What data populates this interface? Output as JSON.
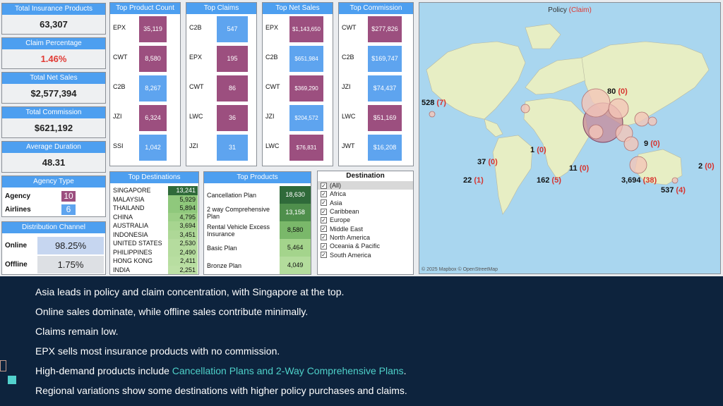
{
  "kpis": [
    {
      "title": "Total Insurance Products",
      "value": "63,307"
    },
    {
      "title": "Claim Percentage",
      "value": "1.46%"
    },
    {
      "title": "Total Net Sales",
      "value": "$2,577,394"
    },
    {
      "title": "Total Commission",
      "value": "$621,192"
    },
    {
      "title": "Average Duration",
      "value": "48.31"
    }
  ],
  "agency_type": {
    "title": "Agency Type",
    "rows": [
      {
        "label": "Agency",
        "value": "10",
        "color": "#9c4f7f"
      },
      {
        "label": "Airlines",
        "value": "6",
        "color": "#5ea4ef"
      }
    ]
  },
  "distribution": {
    "title": "Distribution Channel",
    "rows": [
      {
        "label": "Online",
        "value": "98.25%",
        "color": "#c6d6f0"
      },
      {
        "label": "Offline",
        "value": "1.75%",
        "color": "#dde0e4"
      }
    ]
  },
  "top_product_count": {
    "title": "Top Product Count",
    "rows": [
      {
        "label": "EPX",
        "value": "35,119",
        "color": "#9c4f7f"
      },
      {
        "label": "CWT",
        "value": "8,580",
        "color": "#9c4f7f"
      },
      {
        "label": "C2B",
        "value": "8,267",
        "color": "#5ea4ef"
      },
      {
        "label": "JZI",
        "value": "6,324",
        "color": "#9c4f7f"
      },
      {
        "label": "SSI",
        "value": "1,042",
        "color": "#5ea4ef"
      }
    ]
  },
  "top_claims": {
    "title": "Top Claims",
    "rows": [
      {
        "label": "C2B",
        "value": "547",
        "color": "#5ea4ef"
      },
      {
        "label": "EPX",
        "value": "195",
        "color": "#9c4f7f"
      },
      {
        "label": "CWT",
        "value": "86",
        "color": "#9c4f7f"
      },
      {
        "label": "LWC",
        "value": "36",
        "color": "#9c4f7f"
      },
      {
        "label": "JZI",
        "value": "31",
        "color": "#5ea4ef"
      }
    ]
  },
  "top_net_sales": {
    "title": "Top Net Sales",
    "rows": [
      {
        "label": "EPX",
        "value": "$1,143,650",
        "color": "#9c4f7f"
      },
      {
        "label": "C2B",
        "value": "$651,984",
        "color": "#5ea4ef"
      },
      {
        "label": "CWT",
        "value": "$369,290",
        "color": "#9c4f7f"
      },
      {
        "label": "JZI",
        "value": "$204,572",
        "color": "#5ea4ef"
      },
      {
        "label": "LWC",
        "value": "$76,831",
        "color": "#9c4f7f"
      }
    ]
  },
  "top_commission": {
    "title": "Top Commission",
    "rows": [
      {
        "label": "CWT",
        "value": "$277,826",
        "color": "#9c4f7f"
      },
      {
        "label": "C2B",
        "value": "$169,747",
        "color": "#5ea4ef"
      },
      {
        "label": "JZI",
        "value": "$74,437",
        "color": "#5ea4ef"
      },
      {
        "label": "LWC",
        "value": "$51,169",
        "color": "#9c4f7f"
      },
      {
        "label": "JWT",
        "value": "$16,208",
        "color": "#5ea4ef"
      }
    ]
  },
  "top_destinations": {
    "title": "Top Destinations",
    "rows": [
      {
        "label": "SINGAPORE",
        "value": "13,241",
        "color": "#2f6a3a"
      },
      {
        "label": "MALAYSIA",
        "value": "5,929",
        "color": "#8fc87c"
      },
      {
        "label": "THAILAND",
        "value": "5,894",
        "color": "#8fc87c"
      },
      {
        "label": "CHINA",
        "value": "4,795",
        "color": "#9ccf86"
      },
      {
        "label": "AUSTRALIA",
        "value": "3,694",
        "color": "#a7d590"
      },
      {
        "label": "INDONESIA",
        "value": "3,451",
        "color": "#aed897"
      },
      {
        "label": "UNITED STATES",
        "value": "2,530",
        "color": "#b5dc9e"
      },
      {
        "label": "PHILIPPINES",
        "value": "2,490",
        "color": "#b5dc9e"
      },
      {
        "label": "HONG KONG",
        "value": "2,411",
        "color": "#b8dea1"
      },
      {
        "label": "INDIA",
        "value": "2,251",
        "color": "#bce0a5"
      }
    ]
  },
  "top_products": {
    "title": "Top Products",
    "rows": [
      {
        "label": "Cancellation Plan",
        "value": "18,630",
        "color": "#2f6a3a"
      },
      {
        "label": "2 way Comprehensive Plan",
        "value": "13,158",
        "color": "#4f8f4c"
      },
      {
        "label": "Rental Vehicle Excess Insurance",
        "value": "8,580",
        "color": "#7ab86a"
      },
      {
        "label": "Basic Plan",
        "value": "5,464",
        "color": "#a4d48c"
      },
      {
        "label": "Bronze Plan",
        "value": "4,049",
        "color": "#b3dc9c"
      }
    ]
  },
  "destination_filter": {
    "title": "Destination",
    "options": [
      {
        "label": "(All)",
        "checked": "✓"
      },
      {
        "label": "Africa",
        "checked": "✓"
      },
      {
        "label": "Asia",
        "checked": "✓"
      },
      {
        "label": "Caribbean",
        "checked": "✓"
      },
      {
        "label": "Europe",
        "checked": "✓"
      },
      {
        "label": "Middle East",
        "checked": "✓"
      },
      {
        "label": "North America",
        "checked": "✓"
      },
      {
        "label": "Oceania & Pacific",
        "checked": "✓"
      },
      {
        "label": "South America",
        "checked": "✓"
      }
    ]
  },
  "map": {
    "title_main": "Policy",
    "title_paren": "(Claim)",
    "attribution": "© 2025 Mapbox © OpenStreetMap",
    "labels": [
      {
        "policy": "528",
        "claim": "(7)"
      },
      {
        "policy": "80",
        "claim": "(0)"
      },
      {
        "policy": "1",
        "claim": "(0)"
      },
      {
        "policy": "9",
        "claim": "(0)"
      },
      {
        "policy": "37",
        "claim": "(0)"
      },
      {
        "policy": "11",
        "claim": "(0)"
      },
      {
        "policy": "2",
        "claim": "(0)"
      },
      {
        "policy": "22",
        "claim": "(1)"
      },
      {
        "policy": "162",
        "claim": "(5)"
      },
      {
        "policy": "3,694",
        "claim": "(38)"
      },
      {
        "policy": "537",
        "claim": "(4)"
      }
    ]
  },
  "insights": [
    "Asia leads in policy and claim concentration, with Singapore at the top.",
    "Online sales dominate, while offline sales contribute minimally.",
    "Claims remain low.",
    "EPX sells most insurance products with no commission.",
    "High-demand products include ",
    "Cancellation Plans and 2-Way Comprehensive Plans",
    ".",
    "Regional variations show some destinations with higher policy purchases and claims."
  ]
}
